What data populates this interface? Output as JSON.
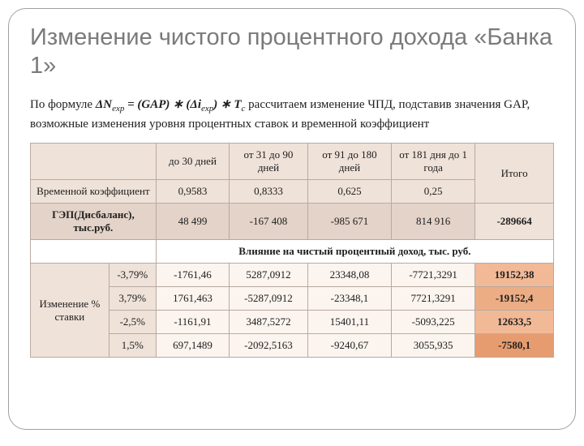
{
  "title": "Изменение чистого процентного дохода «Банка 1»",
  "formula": {
    "lead": "По формуле ",
    "dn": "ΔN",
    "dn_sub": "exp",
    "eq": " = (GAP) ∗ (Δi",
    "di_sub": "exp",
    "close": ") ∗ T",
    "tc_sub": "c",
    "tail": " рассчитаем изменение ЧПД, подставив значения GAP, возможные изменения уровня процентных ставок и временной коэффициент"
  },
  "table": {
    "periods": [
      "до 30 дней",
      "от 31 до 90 дней",
      "от 91 до 180 дней",
      "от 181 дня до 1 года"
    ],
    "total_label": "Итого",
    "time_coef_label": "Временной коэффициент",
    "time_coef": [
      "0,9583",
      "0,8333",
      "0,625",
      "0,25"
    ],
    "gap_label": "ГЭП(Дисбаланс), тыс.руб.",
    "gap": [
      "48 499",
      "-167 408",
      "-985 671",
      "814 916"
    ],
    "gap_total": "-289664",
    "impact_title": "Влияние на чистый процентный доход, тыс. руб.",
    "rate_label": "Изменение % ставки",
    "rows": [
      {
        "rate": "-3,79%",
        "v": [
          "-1761,46",
          "5287,0912",
          "23348,08",
          "-7721,3291"
        ],
        "total": "19152,38",
        "totclass": "tot1"
      },
      {
        "rate": "3,79%",
        "v": [
          "1761,463",
          "-5287,0912",
          "-23348,1",
          "7721,3291"
        ],
        "total": "-19152,4",
        "totclass": "tot2"
      },
      {
        "rate": "-2,5%",
        "v": [
          "-1161,91",
          "3487,5272",
          "15401,11",
          "-5093,225"
        ],
        "total": "12633,5",
        "totclass": "tot3"
      },
      {
        "rate": "1,5%",
        "v": [
          "697,1489",
          "-2092,5163",
          "-9240,67",
          "3055,935"
        ],
        "total": "-7580,1",
        "totclass": "tot4"
      }
    ]
  }
}
